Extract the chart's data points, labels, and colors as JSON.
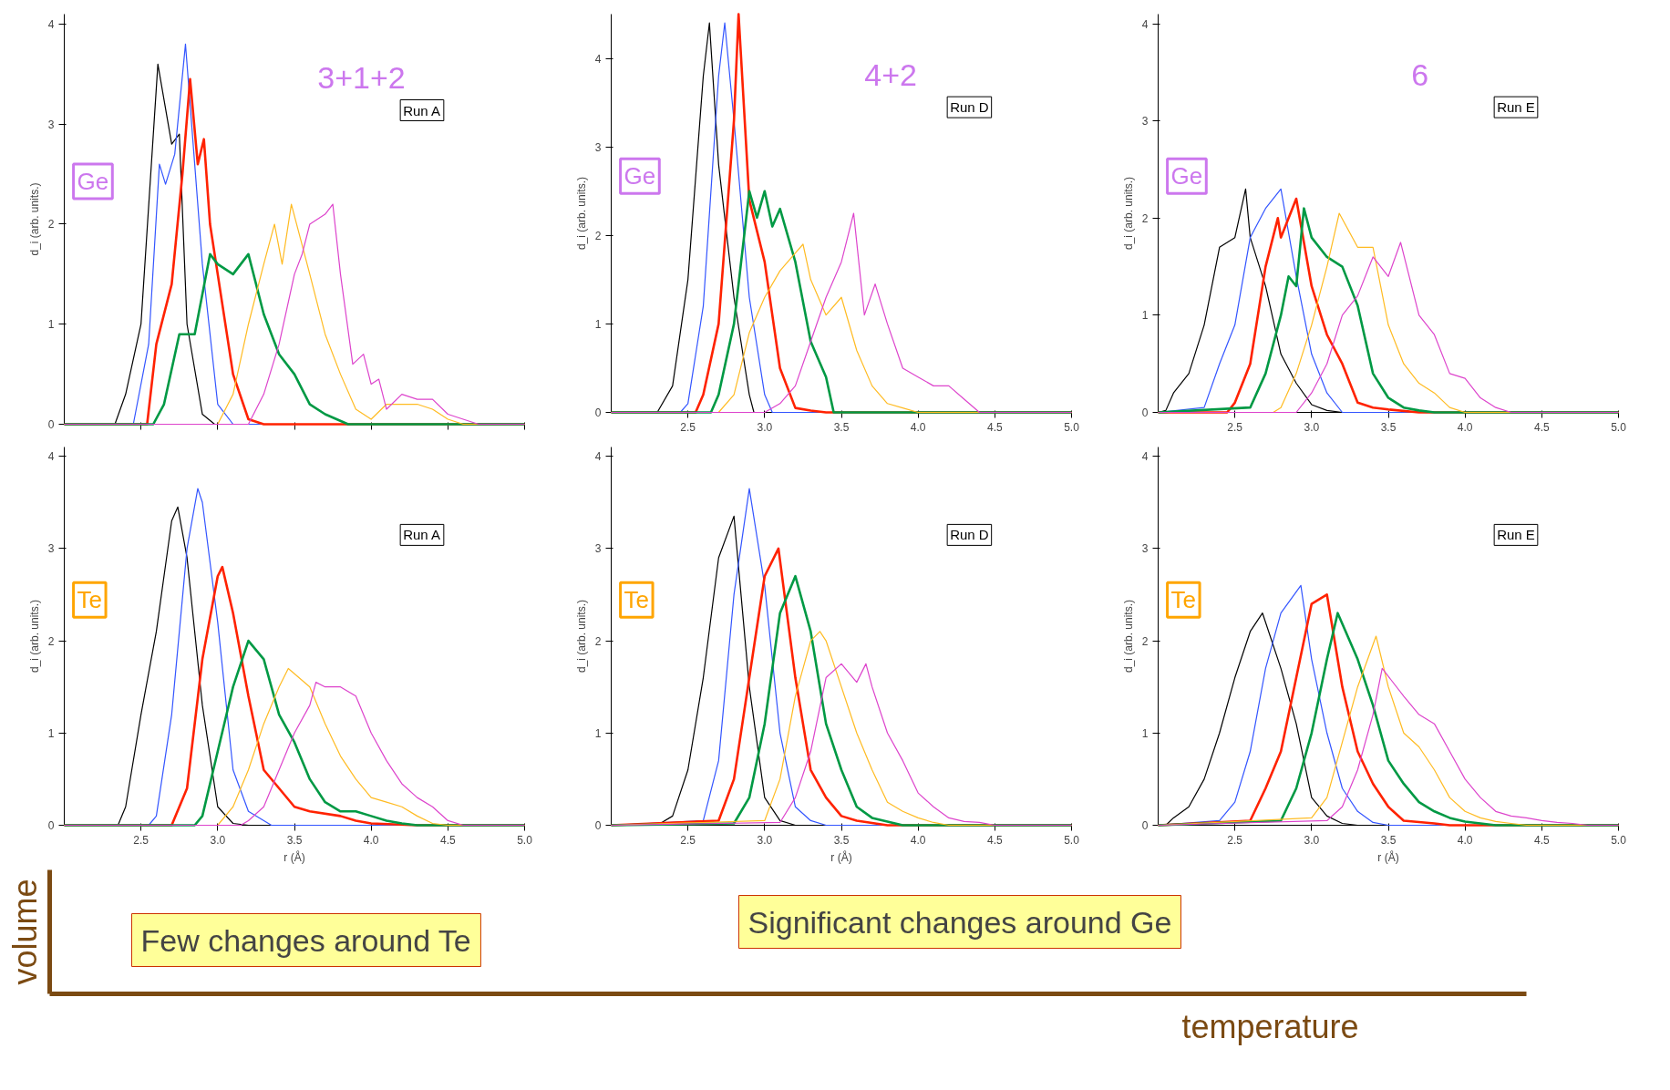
{
  "chart_data": [
    {
      "type": "line",
      "ylabel": "d_i (arb. units.)",
      "xlim": [
        2.0,
        5.0
      ],
      "ylim": [
        0,
        4.1
      ],
      "xticks": [
        {
          "value": 2.5,
          "label": null
        },
        {
          "value": 3,
          "label": null
        },
        {
          "value": 3.5,
          "label": null
        },
        {
          "value": 4,
          "label": null
        },
        {
          "value": 4.5,
          "label": null
        },
        {
          "value": 5,
          "label": null
        }
      ],
      "yticks": [
        0,
        1,
        2,
        3,
        4
      ],
      "tick_labels": "y",
      "annotations": [
        "Ge",
        "Run A",
        "3+1+2"
      ],
      "series": [
        {
          "color": "#000000",
          "x": [
            2.0,
            2.33,
            2.4,
            2.5,
            2.61,
            2.7,
            2.75,
            2.8,
            2.9,
            2.98,
            5.0
          ],
          "values": [
            0,
            0,
            0.3,
            1.0,
            3.6,
            2.8,
            2.9,
            1.0,
            0.1,
            0,
            0
          ]
        },
        {
          "color": "#3355ff",
          "x": [
            2.0,
            2.45,
            2.55,
            2.62,
            2.66,
            2.72,
            2.79,
            2.85,
            2.9,
            3.0,
            3.1,
            5.0
          ],
          "values": [
            0,
            0,
            0.8,
            2.6,
            2.4,
            2.7,
            3.8,
            2.6,
            1.6,
            0.2,
            0,
            0
          ]
        },
        {
          "color": "#ff2200",
          "x": [
            2.0,
            2.54,
            2.6,
            2.7,
            2.77,
            2.82,
            2.87,
            2.91,
            2.95,
            3.0,
            3.1,
            3.2,
            3.3,
            5.0
          ],
          "values": [
            0,
            0,
            0.8,
            1.4,
            2.5,
            3.45,
            2.6,
            2.85,
            2.0,
            1.5,
            0.5,
            0.05,
            0,
            0
          ]
        },
        {
          "color": "#009944",
          "x": [
            2.0,
            2.58,
            2.65,
            2.75,
            2.85,
            2.95,
            3.0,
            3.1,
            3.2,
            3.3,
            3.4,
            3.5,
            3.6,
            3.7,
            3.85,
            5.0
          ],
          "values": [
            0,
            0,
            0.2,
            0.9,
            0.9,
            1.7,
            1.6,
            1.5,
            1.7,
            1.1,
            0.7,
            0.5,
            0.2,
            0.1,
            0,
            0
          ]
        },
        {
          "color": "#ffbb22",
          "x": [
            2.0,
            3.0,
            3.1,
            3.2,
            3.3,
            3.37,
            3.42,
            3.48,
            3.6,
            3.7,
            3.8,
            3.9,
            4.0,
            4.1,
            4.2,
            4.3,
            4.4,
            4.5,
            4.6,
            5.0
          ],
          "values": [
            0,
            0,
            0.3,
            1.0,
            1.6,
            2.0,
            1.6,
            2.2,
            1.5,
            0.9,
            0.5,
            0.15,
            0.05,
            0.2,
            0.2,
            0.2,
            0.15,
            0.05,
            0,
            0
          ]
        },
        {
          "color": "#dd44cc",
          "x": [
            2.0,
            3.2,
            3.3,
            3.4,
            3.5,
            3.55,
            3.6,
            3.7,
            3.75,
            3.8,
            3.88,
            3.95,
            4.0,
            4.05,
            4.1,
            4.2,
            4.3,
            4.4,
            4.5,
            4.6,
            4.7,
            5.0
          ],
          "values": [
            0,
            0,
            0.3,
            0.8,
            1.5,
            1.7,
            2.0,
            2.1,
            2.2,
            1.5,
            0.6,
            0.7,
            0.4,
            0.45,
            0.15,
            0.3,
            0.25,
            0.25,
            0.1,
            0.05,
            0,
            0
          ]
        }
      ]
    },
    {
      "type": "line",
      "xlabel": "r (Å)",
      "ylabel": "d_i (arb. units.)",
      "xlim": [
        2.0,
        5.0
      ],
      "ylim": [
        0,
        4.1
      ],
      "xticks": [
        {
          "value": 2.5,
          "label": "2.5"
        },
        {
          "value": 3,
          "label": "3.0"
        },
        {
          "value": 3.5,
          "label": "3.5"
        },
        {
          "value": 4,
          "label": "4.0"
        },
        {
          "value": 4.5,
          "label": "4.5"
        },
        {
          "value": 5,
          "label": "5.0"
        }
      ],
      "yticks": [
        0,
        1,
        2,
        3,
        4
      ],
      "annotations": [
        "Te",
        "Run A"
      ],
      "series": [
        {
          "color": "#000000",
          "x": [
            2.0,
            2.35,
            2.4,
            2.5,
            2.6,
            2.7,
            2.74,
            2.8,
            2.9,
            3.0,
            3.1,
            3.2,
            5.0
          ],
          "values": [
            0,
            0,
            0.2,
            1.2,
            2.1,
            3.3,
            3.45,
            2.9,
            1.3,
            0.2,
            0.02,
            0,
            0
          ]
        },
        {
          "color": "#3355ff",
          "x": [
            2.0,
            2.55,
            2.6,
            2.7,
            2.8,
            2.87,
            2.9,
            3.0,
            3.1,
            3.2,
            3.35,
            5.0
          ],
          "values": [
            0,
            0,
            0.1,
            1.2,
            3.0,
            3.65,
            3.5,
            2.2,
            0.6,
            0.15,
            0,
            0
          ]
        },
        {
          "color": "#ff2200",
          "x": [
            2.0,
            2.7,
            2.8,
            2.9,
            3.0,
            3.03,
            3.1,
            3.2,
            3.3,
            3.4,
            3.5,
            3.6,
            3.8,
            3.9,
            4.0,
            4.3,
            5.0
          ],
          "values": [
            0,
            0,
            0.4,
            1.8,
            2.7,
            2.8,
            2.3,
            1.4,
            0.6,
            0.4,
            0.2,
            0.15,
            0.1,
            0.05,
            0.02,
            0,
            0
          ]
        },
        {
          "color": "#009944",
          "x": [
            2.0,
            2.85,
            2.9,
            3.0,
            3.1,
            3.2,
            3.3,
            3.4,
            3.5,
            3.6,
            3.7,
            3.8,
            3.9,
            4.0,
            4.1,
            4.2,
            4.3,
            5.0
          ],
          "values": [
            0,
            0,
            0.1,
            0.8,
            1.5,
            2.0,
            1.8,
            1.2,
            0.9,
            0.5,
            0.25,
            0.15,
            0.15,
            0.1,
            0.05,
            0.02,
            0,
            0
          ]
        },
        {
          "color": "#ffbb22",
          "x": [
            2.0,
            3.0,
            3.1,
            3.2,
            3.3,
            3.4,
            3.46,
            3.6,
            3.7,
            3.8,
            3.9,
            4.0,
            4.1,
            4.2,
            4.3,
            4.4,
            4.5,
            5.0
          ],
          "values": [
            0,
            0,
            0.2,
            0.6,
            1.1,
            1.5,
            1.7,
            1.5,
            1.1,
            0.75,
            0.5,
            0.3,
            0.25,
            0.2,
            0.1,
            0.02,
            0,
            0
          ]
        },
        {
          "color": "#dd44cc",
          "x": [
            2.0,
            3.15,
            3.2,
            3.3,
            3.4,
            3.5,
            3.6,
            3.64,
            3.7,
            3.8,
            3.9,
            4.0,
            4.1,
            4.2,
            4.3,
            4.4,
            4.5,
            4.6,
            5.0
          ],
          "values": [
            0,
            0,
            0.05,
            0.2,
            0.6,
            1.0,
            1.3,
            1.55,
            1.5,
            1.5,
            1.4,
            1.0,
            0.7,
            0.45,
            0.3,
            0.2,
            0.05,
            0,
            0
          ]
        }
      ]
    },
    {
      "type": "line",
      "ylabel": "d_i (arb. units.)",
      "xlim": [
        2.0,
        5.0
      ],
      "ylim": [
        0,
        4.5
      ],
      "xticks": [
        {
          "value": 2.5,
          "label": "2.5"
        },
        {
          "value": 3,
          "label": "3.0"
        },
        {
          "value": 3.5,
          "label": "3.5"
        },
        {
          "value": 4,
          "label": "4.0"
        },
        {
          "value": 4.5,
          "label": "4.5"
        },
        {
          "value": 5,
          "label": "5.0"
        }
      ],
      "yticks": [
        0,
        1,
        2,
        3,
        4
      ],
      "annotations": [
        "Ge",
        "Run D",
        "4+2"
      ],
      "series": [
        {
          "color": "#000000",
          "x": [
            2.0,
            2.3,
            2.4,
            2.5,
            2.6,
            2.64,
            2.7,
            2.8,
            2.9,
            2.93,
            5.0
          ],
          "values": [
            0,
            0,
            0.3,
            1.5,
            3.8,
            4.4,
            2.8,
            1.3,
            0.2,
            0,
            0
          ]
        },
        {
          "color": "#3355ff",
          "x": [
            2.0,
            2.45,
            2.5,
            2.6,
            2.7,
            2.74,
            2.8,
            2.9,
            3.0,
            3.05,
            5.0
          ],
          "values": [
            0,
            0,
            0.1,
            1.2,
            3.8,
            4.4,
            3.3,
            1.3,
            0.2,
            0,
            0
          ]
        },
        {
          "color": "#ff2200",
          "x": [
            2.0,
            2.55,
            2.6,
            2.7,
            2.8,
            2.83,
            2.9,
            3.0,
            3.1,
            3.2,
            3.3,
            3.4,
            5.0
          ],
          "values": [
            0,
            0,
            0.2,
            1.0,
            3.3,
            4.5,
            2.4,
            1.7,
            0.5,
            0.05,
            0.02,
            0,
            0
          ]
        },
        {
          "color": "#009944",
          "x": [
            2.0,
            2.65,
            2.7,
            2.8,
            2.9,
            2.95,
            3.0,
            3.05,
            3.1,
            3.2,
            3.3,
            3.4,
            3.45,
            5.0
          ],
          "values": [
            0,
            0,
            0.2,
            1.0,
            2.5,
            2.2,
            2.5,
            2.1,
            2.3,
            1.7,
            0.8,
            0.4,
            0,
            0
          ]
        },
        {
          "color": "#ffbb22",
          "x": [
            2.0,
            2.7,
            2.8,
            2.9,
            3.0,
            3.1,
            3.2,
            3.25,
            3.3,
            3.4,
            3.5,
            3.6,
            3.7,
            3.8,
            3.9,
            4.0,
            5.0
          ],
          "values": [
            0,
            0,
            0.2,
            0.9,
            1.3,
            1.6,
            1.8,
            1.9,
            1.5,
            1.1,
            1.3,
            0.7,
            0.3,
            0.1,
            0.05,
            0,
            0
          ]
        },
        {
          "color": "#dd44cc",
          "x": [
            2.0,
            3.0,
            3.1,
            3.2,
            3.3,
            3.4,
            3.5,
            3.58,
            3.65,
            3.72,
            3.8,
            3.9,
            4.0,
            4.1,
            4.2,
            4.3,
            4.4,
            5.0
          ],
          "values": [
            0,
            0,
            0.1,
            0.3,
            0.8,
            1.3,
            1.7,
            2.25,
            1.1,
            1.45,
            1.0,
            0.5,
            0.4,
            0.3,
            0.3,
            0.15,
            0,
            0
          ]
        }
      ]
    },
    {
      "type": "line",
      "xlabel": "r (Å)",
      "ylabel": "d_i (arb. units.)",
      "xlim": [
        2.0,
        5.0
      ],
      "ylim": [
        0,
        4.1
      ],
      "xticks": [
        {
          "value": 2.5,
          "label": "2.5"
        },
        {
          "value": 3,
          "label": "3.0"
        },
        {
          "value": 3.5,
          "label": "3.5"
        },
        {
          "value": 4,
          "label": "4.0"
        },
        {
          "value": 4.5,
          "label": "4.5"
        },
        {
          "value": 5,
          "label": "5.0"
        }
      ],
      "yticks": [
        0,
        1,
        2,
        3,
        4
      ],
      "annotations": [
        "Te",
        "Run D"
      ],
      "series": [
        {
          "color": "#000000",
          "x": [
            2.0,
            2.3,
            2.4,
            2.5,
            2.6,
            2.7,
            2.8,
            2.9,
            3.0,
            3.1,
            3.2,
            5.0
          ],
          "values": [
            0,
            0,
            0.1,
            0.6,
            1.6,
            2.9,
            3.35,
            1.5,
            0.3,
            0.05,
            0,
            0
          ]
        },
        {
          "color": "#3355ff",
          "x": [
            2.0,
            2.6,
            2.7,
            2.8,
            2.9,
            3.0,
            3.1,
            3.2,
            3.3,
            3.4,
            5.0
          ],
          "values": [
            0,
            0.05,
            0.7,
            2.5,
            3.65,
            2.6,
            1.0,
            0.2,
            0.05,
            0,
            0
          ]
        },
        {
          "color": "#ff2200",
          "x": [
            2.0,
            2.7,
            2.8,
            2.9,
            3.0,
            3.09,
            3.2,
            3.3,
            3.4,
            3.5,
            3.6,
            3.8,
            5.0
          ],
          "values": [
            0,
            0.05,
            0.5,
            1.6,
            2.7,
            3.0,
            1.6,
            0.6,
            0.3,
            0.1,
            0.05,
            0,
            0
          ]
        },
        {
          "color": "#009944",
          "x": [
            2.0,
            2.8,
            2.9,
            3.0,
            3.1,
            3.2,
            3.3,
            3.4,
            3.5,
            3.6,
            3.7,
            3.9,
            5.0
          ],
          "values": [
            0,
            0.02,
            0.3,
            1.1,
            2.3,
            2.7,
            2.1,
            1.1,
            0.6,
            0.2,
            0.08,
            0,
            0
          ]
        },
        {
          "color": "#ffbb22",
          "x": [
            2.0,
            3.0,
            3.1,
            3.2,
            3.3,
            3.36,
            3.4,
            3.5,
            3.6,
            3.7,
            3.8,
            3.9,
            4.0,
            4.1,
            4.2,
            5.0
          ],
          "values": [
            0,
            0.05,
            0.5,
            1.4,
            2.0,
            2.1,
            2.0,
            1.5,
            1.0,
            0.6,
            0.25,
            0.15,
            0.08,
            0.03,
            0,
            0
          ]
        },
        {
          "color": "#dd44cc",
          "x": [
            2.0,
            3.1,
            3.2,
            3.3,
            3.4,
            3.5,
            3.6,
            3.66,
            3.7,
            3.8,
            3.9,
            4.0,
            4.1,
            4.2,
            4.3,
            4.4,
            4.5,
            5.0
          ],
          "values": [
            0,
            0.03,
            0.3,
            0.8,
            1.6,
            1.75,
            1.55,
            1.75,
            1.5,
            1.0,
            0.7,
            0.35,
            0.2,
            0.08,
            0.04,
            0.03,
            0,
            0
          ]
        }
      ]
    },
    {
      "type": "line",
      "ylabel": "d_i (arb. units.)",
      "xlim": [
        2.0,
        5.0
      ],
      "ylim": [
        0,
        4.1
      ],
      "xticks": [
        {
          "value": 2.5,
          "label": "2.5"
        },
        {
          "value": 3,
          "label": "3.0"
        },
        {
          "value": 3.5,
          "label": "3.5"
        },
        {
          "value": 4,
          "label": "4.0"
        },
        {
          "value": 4.5,
          "label": "4.5"
        },
        {
          "value": 5,
          "label": "5.0"
        }
      ],
      "yticks": [
        0,
        1,
        2,
        3,
        4
      ],
      "annotations": [
        "Ge",
        "Run E",
        "6"
      ],
      "series": [
        {
          "color": "#000000",
          "x": [
            2.0,
            2.05,
            2.1,
            2.2,
            2.3,
            2.4,
            2.5,
            2.57,
            2.6,
            2.7,
            2.8,
            2.9,
            3.0,
            3.1,
            3.2,
            5.0
          ],
          "values": [
            0,
            0.02,
            0.2,
            0.4,
            0.9,
            1.7,
            1.8,
            2.3,
            1.8,
            1.3,
            0.6,
            0.3,
            0.08,
            0.02,
            0,
            0
          ]
        },
        {
          "color": "#3355ff",
          "x": [
            2.0,
            2.3,
            2.4,
            2.5,
            2.6,
            2.7,
            2.8,
            2.9,
            3.0,
            3.1,
            3.2,
            5.0
          ],
          "values": [
            0,
            0.05,
            0.5,
            0.9,
            1.8,
            2.1,
            2.3,
            1.4,
            0.6,
            0.2,
            0,
            0
          ]
        },
        {
          "color": "#ff2200",
          "x": [
            2.0,
            2.45,
            2.5,
            2.6,
            2.7,
            2.78,
            2.8,
            2.9,
            3.0,
            3.1,
            3.2,
            3.3,
            3.4,
            3.5,
            3.7,
            5.0
          ],
          "values": [
            0,
            0,
            0.1,
            0.5,
            1.5,
            2.0,
            1.8,
            2.2,
            1.3,
            0.8,
            0.5,
            0.1,
            0.05,
            0.03,
            0,
            0
          ]
        },
        {
          "color": "#009944",
          "x": [
            2.0,
            2.6,
            2.7,
            2.8,
            2.85,
            2.9,
            2.95,
            3.0,
            3.1,
            3.2,
            3.3,
            3.4,
            3.5,
            3.6,
            3.7,
            3.8,
            5.0
          ],
          "values": [
            0,
            0.05,
            0.4,
            1.0,
            1.4,
            1.3,
            2.1,
            1.8,
            1.6,
            1.5,
            1.1,
            0.4,
            0.15,
            0.05,
            0.02,
            0,
            0
          ]
        },
        {
          "color": "#ffbb22",
          "x": [
            2.0,
            2.75,
            2.8,
            2.9,
            3.0,
            3.1,
            3.18,
            3.3,
            3.4,
            3.5,
            3.6,
            3.7,
            3.8,
            3.9,
            4.0,
            5.0
          ],
          "values": [
            0,
            0,
            0.05,
            0.4,
            0.9,
            1.5,
            2.05,
            1.7,
            1.7,
            0.9,
            0.5,
            0.3,
            0.2,
            0.05,
            0,
            0
          ]
        },
        {
          "color": "#dd44cc",
          "x": [
            2.0,
            2.9,
            3.0,
            3.1,
            3.2,
            3.3,
            3.4,
            3.5,
            3.58,
            3.7,
            3.8,
            3.9,
            4.0,
            4.1,
            4.2,
            4.3,
            5.0
          ],
          "values": [
            0,
            0,
            0.2,
            0.5,
            1.0,
            1.2,
            1.6,
            1.4,
            1.75,
            1.0,
            0.8,
            0.4,
            0.35,
            0.15,
            0.05,
            0,
            0
          ]
        }
      ]
    },
    {
      "type": "line",
      "xlabel": "r (Å)",
      "ylabel": "d_i (arb. units.)",
      "xlim": [
        2.0,
        5.0
      ],
      "ylim": [
        0,
        4.1
      ],
      "xticks": [
        {
          "value": 2.5,
          "label": "2.5"
        },
        {
          "value": 3,
          "label": "3.0"
        },
        {
          "value": 3.5,
          "label": "3.5"
        },
        {
          "value": 4,
          "label": "4.0"
        },
        {
          "value": 4.5,
          "label": "4.5"
        },
        {
          "value": 5,
          "label": "5.0"
        }
      ],
      "yticks": [
        0,
        1,
        2,
        3,
        4
      ],
      "annotations": [
        "Te",
        "Run E"
      ],
      "series": [
        {
          "color": "#000000",
          "x": [
            2.0,
            2.05,
            2.1,
            2.2,
            2.3,
            2.4,
            2.5,
            2.6,
            2.68,
            2.8,
            2.9,
            3.0,
            3.1,
            3.2,
            3.3,
            5.0
          ],
          "values": [
            0,
            0,
            0.08,
            0.2,
            0.5,
            1.0,
            1.6,
            2.1,
            2.3,
            1.7,
            1.1,
            0.3,
            0.1,
            0.02,
            0,
            0
          ]
        },
        {
          "color": "#3355ff",
          "x": [
            2.0,
            2.4,
            2.5,
            2.6,
            2.7,
            2.8,
            2.93,
            3.0,
            3.1,
            3.2,
            3.3,
            3.4,
            3.5,
            5.0
          ],
          "values": [
            0,
            0.05,
            0.25,
            0.8,
            1.7,
            2.3,
            2.6,
            1.8,
            1.0,
            0.4,
            0.15,
            0.03,
            0,
            0
          ]
        },
        {
          "color": "#ff2200",
          "x": [
            2.0,
            2.6,
            2.7,
            2.8,
            2.9,
            3.0,
            3.1,
            3.2,
            3.3,
            3.4,
            3.5,
            3.6,
            3.8,
            3.9,
            5.0
          ],
          "values": [
            0,
            0.05,
            0.4,
            0.8,
            1.6,
            2.4,
            2.5,
            1.5,
            0.8,
            0.45,
            0.2,
            0.05,
            0.02,
            0,
            0
          ]
        },
        {
          "color": "#009944",
          "x": [
            2.0,
            2.8,
            2.9,
            3.0,
            3.1,
            3.17,
            3.3,
            3.4,
            3.5,
            3.6,
            3.7,
            3.8,
            3.9,
            4.0,
            4.1,
            4.2,
            5.0
          ],
          "values": [
            0,
            0.05,
            0.4,
            1.0,
            1.8,
            2.3,
            1.8,
            1.3,
            0.7,
            0.45,
            0.25,
            0.15,
            0.08,
            0.04,
            0.02,
            0,
            0
          ]
        },
        {
          "color": "#ffbb22",
          "x": [
            2.0,
            3.0,
            3.1,
            3.2,
            3.3,
            3.42,
            3.5,
            3.6,
            3.7,
            3.8,
            3.9,
            4.0,
            4.1,
            4.2,
            4.3,
            4.4,
            5.0
          ],
          "values": [
            0,
            0.08,
            0.3,
            0.9,
            1.5,
            2.05,
            1.5,
            1.0,
            0.85,
            0.6,
            0.3,
            0.15,
            0.08,
            0.04,
            0.02,
            0,
            0
          ]
        },
        {
          "color": "#dd44cc",
          "x": [
            2.0,
            3.1,
            3.2,
            3.3,
            3.4,
            3.46,
            3.6,
            3.7,
            3.8,
            3.9,
            4.0,
            4.1,
            4.2,
            4.3,
            4.4,
            4.5,
            4.6,
            4.7,
            4.8,
            5.0
          ],
          "values": [
            0,
            0.05,
            0.2,
            0.6,
            1.2,
            1.7,
            1.4,
            1.2,
            1.1,
            0.8,
            0.5,
            0.3,
            0.15,
            0.1,
            0.08,
            0.05,
            0.03,
            0.02,
            0,
            0
          ]
        }
      ]
    },
    {
      "type": "other",
      "annotations": [
        "Significant changes around Ge",
        "Few changes around Te",
        "volume",
        "temperature"
      ]
    }
  ]
}
